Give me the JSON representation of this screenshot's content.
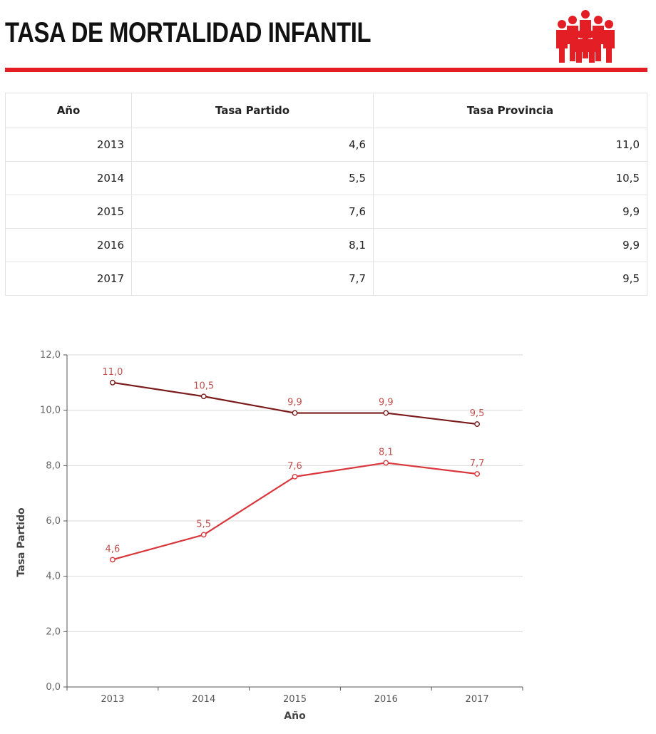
{
  "header": {
    "title": "TASA DE MORTALIDAD INFANTIL",
    "icon": "people-group-icon",
    "accent_color": "#e31e24"
  },
  "table": {
    "headers": [
      "Año",
      "Tasa Partido",
      "Tasa Provincia"
    ],
    "rows": [
      [
        "2013",
        "4,6",
        "11,0"
      ],
      [
        "2014",
        "5,5",
        "10,5"
      ],
      [
        "2015",
        "7,6",
        "9,9"
      ],
      [
        "2016",
        "8,1",
        "9,9"
      ],
      [
        "2017",
        "7,7",
        "9,5"
      ]
    ]
  },
  "chart_data": {
    "type": "line",
    "categories": [
      "2013",
      "2014",
      "2015",
      "2016",
      "2017"
    ],
    "series": [
      {
        "values": [
          11.0,
          10.5,
          9.9,
          9.9,
          9.5
        ],
        "labels": [
          "11,0",
          "10,5",
          "9,9",
          "9,9",
          "9,5"
        ],
        "color": "#7a1a1a"
      },
      {
        "values": [
          4.6,
          5.5,
          7.6,
          8.1,
          7.7
        ],
        "labels": [
          "4,6",
          "5,5",
          "7,6",
          "8,1",
          "7,7"
        ],
        "color": "#d9373c"
      }
    ],
    "yticks": [
      "0,0",
      "2,0",
      "4,0",
      "6,0",
      "8,0",
      "10,0",
      "12,0"
    ],
    "ylim": [
      0,
      12
    ],
    "xlabel": "Año",
    "ylabel": "Tasa Partido",
    "grid": true,
    "label_color": "#c0504d"
  }
}
